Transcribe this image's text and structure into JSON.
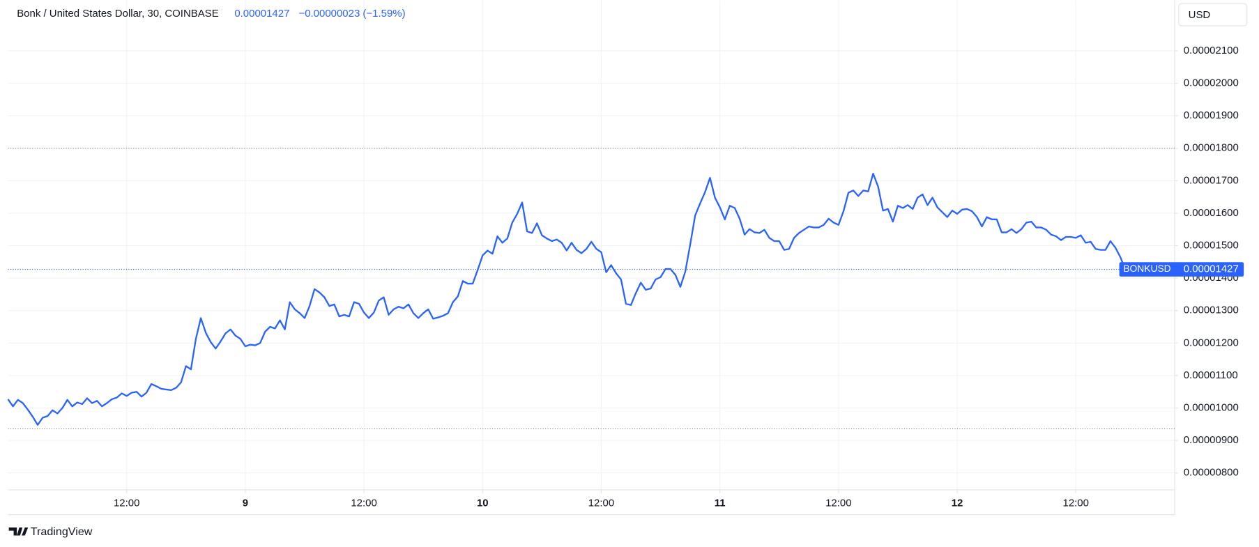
{
  "chart_data": {
    "type": "line",
    "title": "Bonk / United States Dollar, 30, COINBASE",
    "last": 1.427e-05,
    "change": "−0.00000023 (−1.59%)",
    "currency": "USD",
    "symbol": "BONKUSD",
    "brand": "TradingView",
    "color": "#2962ff",
    "grid": true,
    "ref_lines": [
      1.8e-05,
      9.36e-06
    ],
    "xlim": [
      0,
      118
    ],
    "xticks": [
      {
        "value": 12,
        "label": "12:00"
      },
      {
        "value": 24,
        "label": "9"
      },
      {
        "value": 36,
        "label": "12:00"
      },
      {
        "value": 48,
        "label": "10"
      },
      {
        "value": 60,
        "label": "12:00"
      },
      {
        "value": 72,
        "label": "11"
      },
      {
        "value": 84,
        "label": "12:00"
      },
      {
        "value": 96,
        "label": "12"
      },
      {
        "value": 108,
        "label": "12:00"
      }
    ],
    "ylim": [
      7.48e-06,
      2.256e-05
    ],
    "yticks": [
      {
        "value": 8e-06,
        "label": "0.00000800"
      },
      {
        "value": 9e-06,
        "label": "0.00000900"
      },
      {
        "value": 1e-05,
        "label": "0.00001000"
      },
      {
        "value": 1.1e-05,
        "label": "0.00001100"
      },
      {
        "value": 1.2e-05,
        "label": "0.00001200"
      },
      {
        "value": 1.3e-05,
        "label": "0.00001300"
      },
      {
        "value": 1.4e-05,
        "label": "0.00001400"
      },
      {
        "value": 1.5e-05,
        "label": "0.00001500"
      },
      {
        "value": 1.6e-05,
        "label": "0.00001600"
      },
      {
        "value": 1.7e-05,
        "label": "0.00001700"
      },
      {
        "value": 1.8e-05,
        "label": "0.00001800"
      },
      {
        "value": 1.9e-05,
        "label": "0.00001900"
      },
      {
        "value": 2e-05,
        "label": "0.00002000"
      },
      {
        "value": 2.1e-05,
        "label": "0.00002100"
      }
    ],
    "x": [
      0,
      0.5,
      1,
      1.5,
      2,
      2.5,
      3,
      3.5,
      4,
      4.5,
      5,
      5.5,
      6,
      6.5,
      7,
      7.5,
      8,
      8.5,
      9,
      9.5,
      10,
      10.5,
      11,
      11.5,
      12,
      12.5,
      13,
      13.5,
      14,
      14.5,
      15,
      15.5,
      16,
      16.5,
      17,
      17.5,
      18,
      18.5,
      19,
      19.5,
      20,
      20.5,
      21,
      21.5,
      22,
      22.5,
      23,
      23.5,
      24,
      24.5,
      25,
      25.5,
      26,
      26.5,
      27,
      27.5,
      28,
      28.5,
      29,
      29.5,
      30,
      30.5,
      31,
      31.5,
      32,
      32.5,
      33,
      33.5,
      34,
      34.5,
      35,
      35.5,
      36,
      36.5,
      37,
      37.5,
      38,
      38.5,
      39,
      39.5,
      40,
      40.5,
      41,
      41.5,
      42,
      42.5,
      43,
      43.5,
      44,
      44.5,
      45,
      45.5,
      46,
      46.5,
      47,
      47.5,
      48,
      48.5,
      49,
      49.5,
      50,
      50.5,
      51,
      51.5,
      52,
      52.5,
      53,
      53.5,
      54,
      54.5,
      55,
      55.5,
      56,
      56.5,
      57,
      57.5,
      58,
      58.5,
      59,
      59.5,
      60,
      60.5,
      61,
      61.5,
      62,
      62.5,
      63,
      63.5,
      64,
      64.5,
      65,
      65.5,
      66,
      66.5,
      67,
      67.5,
      68,
      68.5,
      69,
      69.5,
      70,
      70.5,
      71,
      71.5,
      72,
      72.5,
      73,
      73.5,
      74,
      74.5,
      75,
      75.5,
      76,
      76.5,
      77,
      77.5,
      78,
      78.5,
      79,
      79.5,
      80,
      80.5,
      81,
      81.5,
      82,
      82.5,
      83,
      83.5,
      84,
      84.5,
      85,
      85.5,
      86,
      86.5,
      87,
      87.5,
      88,
      88.5,
      89,
      89.5,
      90,
      90.5,
      91,
      91.5,
      92,
      92.5,
      93,
      93.5,
      94,
      94.5,
      95,
      95.5,
      96,
      96.5,
      97,
      97.5,
      98,
      98.5,
      99,
      99.5,
      100,
      100.5,
      101,
      101.5,
      102,
      102.5,
      103,
      103.5,
      104,
      104.5,
      105,
      105.5,
      106,
      106.5,
      107,
      107.5,
      108,
      108.5,
      109,
      109.5,
      110,
      110.5,
      111,
      111.5,
      112,
      112.5,
      113
    ],
    "values": [
      1.027e-05,
      1.005e-05,
      1.025e-05,
      1.015e-05,
      9.95e-06,
      9.73e-06,
      9.48e-06,
      9.7e-06,
      9.75e-06,
      9.93e-06,
      9.83e-06,
      1e-05,
      1.025e-05,
      1.005e-05,
      1.017e-05,
      1.012e-05,
      1.03e-05,
      1.015e-05,
      1.022e-05,
      1.005e-05,
      1.015e-05,
      1.027e-05,
      1.032e-05,
      1.045e-05,
      1.037e-05,
      1.047e-05,
      1.05e-05,
      1.035e-05,
      1.047e-05,
      1.074e-05,
      1.067e-05,
      1.059e-05,
      1.057e-05,
      1.055e-05,
      1.062e-05,
      1.079e-05,
      1.129e-05,
      1.119e-05,
      1.213e-05,
      1.277e-05,
      1.232e-05,
      1.203e-05,
      1.183e-05,
      1.205e-05,
      1.23e-05,
      1.242e-05,
      1.223e-05,
      1.213e-05,
      1.19e-05,
      1.195e-05,
      1.193e-05,
      1.2e-05,
      1.235e-05,
      1.25e-05,
      1.245e-05,
      1.27e-05,
      1.242e-05,
      1.326e-05,
      1.304e-05,
      1.292e-05,
      1.277e-05,
      1.314e-05,
      1.366e-05,
      1.356e-05,
      1.341e-05,
      1.314e-05,
      1.319e-05,
      1.282e-05,
      1.287e-05,
      1.282e-05,
      1.326e-05,
      1.321e-05,
      1.294e-05,
      1.277e-05,
      1.294e-05,
      1.331e-05,
      1.341e-05,
      1.287e-05,
      1.304e-05,
      1.312e-05,
      1.307e-05,
      1.319e-05,
      1.292e-05,
      1.277e-05,
      1.292e-05,
      1.304e-05,
      1.275e-05,
      1.279e-05,
      1.284e-05,
      1.292e-05,
      1.326e-05,
      1.344e-05,
      1.391e-05,
      1.383e-05,
      1.383e-05,
      1.425e-05,
      1.47e-05,
      1.485e-05,
      1.475e-05,
      1.529e-05,
      1.509e-05,
      1.522e-05,
      1.571e-05,
      1.598e-05,
      1.633e-05,
      1.544e-05,
      1.539e-05,
      1.569e-05,
      1.532e-05,
      1.522e-05,
      1.514e-05,
      1.519e-05,
      1.509e-05,
      1.485e-05,
      1.509e-05,
      1.487e-05,
      1.477e-05,
      1.49e-05,
      1.512e-05,
      1.49e-05,
      1.48e-05,
      1.418e-05,
      1.44e-05,
      1.415e-05,
      1.396e-05,
      1.321e-05,
      1.317e-05,
      1.354e-05,
      1.386e-05,
      1.364e-05,
      1.368e-05,
      1.396e-05,
      1.403e-05,
      1.428e-05,
      1.428e-05,
      1.41e-05,
      1.373e-05,
      1.42e-05,
      1.504e-05,
      1.593e-05,
      1.63e-05,
      1.665e-05,
      1.709e-05,
      1.648e-05,
      1.618e-05,
      1.581e-05,
      1.623e-05,
      1.616e-05,
      1.583e-05,
      1.534e-05,
      1.551e-05,
      1.541e-05,
      1.539e-05,
      1.549e-05,
      1.524e-05,
      1.514e-05,
      1.514e-05,
      1.487e-05,
      1.49e-05,
      1.524e-05,
      1.539e-05,
      1.549e-05,
      1.559e-05,
      1.556e-05,
      1.556e-05,
      1.564e-05,
      1.583e-05,
      1.571e-05,
      1.564e-05,
      1.606e-05,
      1.663e-05,
      1.67e-05,
      1.653e-05,
      1.67e-05,
      1.667e-05,
      1.722e-05,
      1.682e-05,
      1.608e-05,
      1.613e-05,
      1.574e-05,
      1.623e-05,
      1.616e-05,
      1.625e-05,
      1.613e-05,
      1.648e-05,
      1.658e-05,
      1.625e-05,
      1.648e-05,
      1.618e-05,
      1.603e-05,
      1.588e-05,
      1.608e-05,
      1.598e-05,
      1.611e-05,
      1.613e-05,
      1.606e-05,
      1.588e-05,
      1.559e-05,
      1.588e-05,
      1.581e-05,
      1.581e-05,
      1.541e-05,
      1.541e-05,
      1.551e-05,
      1.539e-05,
      1.551e-05,
      1.571e-05,
      1.574e-05,
      1.556e-05,
      1.556e-05,
      1.549e-05,
      1.534e-05,
      1.529e-05,
      1.517e-05,
      1.527e-05,
      1.527e-05,
      1.524e-05,
      1.532e-05,
      1.509e-05,
      1.512e-05,
      1.49e-05,
      1.487e-05,
      1.487e-05,
      1.514e-05,
      1.494e-05,
      1.465e-05,
      1.427e-05
    ]
  }
}
